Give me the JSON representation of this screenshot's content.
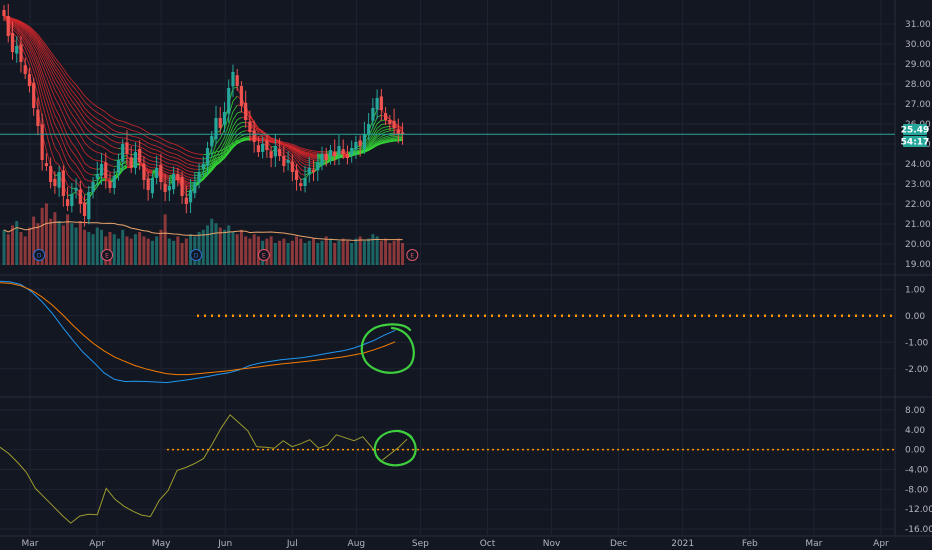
{
  "colors": {
    "background": "#131722",
    "grid": "#1f2431",
    "separator": "#2a2e39",
    "axis_text": "#b2b5be",
    "candle_up": "#26a69a",
    "candle_down": "#ef5350",
    "price_line": "#26a69a",
    "price_badge": "#26a69a",
    "ribbon_red": "#d5282c",
    "ribbon_green": "#35d635",
    "volume_ma": "#e9a36a",
    "macd_line": "#2196f3",
    "signal_line": "#f57c00",
    "zero_line_dotted": "#ff9800",
    "oscillator_line": "#9b9b2e",
    "annotation_circle": "#3ecf3e",
    "event_dividend": "#2f6fd0",
    "event_earnings": "#e0566b"
  },
  "price_badges": {
    "last_price": "25.49",
    "countdown": "54:17"
  },
  "chart_data": [
    {
      "type": "candlestick",
      "panel": "price",
      "price_axis_ticks": [
        "31.00",
        "30.00",
        "29.00",
        "28.00",
        "27.00",
        "26.00",
        "25.00",
        "24.00",
        "23.00",
        "22.00",
        "21.00",
        "20.00",
        "19.00"
      ],
      "ylim": [
        18.8,
        31.8
      ],
      "x_axis_labels": [
        "Mar",
        "Apr",
        "May",
        "Jun",
        "Jul",
        "Aug",
        "Sep",
        "Oct",
        "Nov",
        "Dec",
        "2021",
        "Feb",
        "Mar",
        "Apr"
      ],
      "x_label_positions_index": [
        0,
        22,
        43,
        64,
        86,
        107,
        128,
        150,
        171,
        193,
        214,
        236,
        257,
        279
      ],
      "last_close": 25.49,
      "closes_by_session": [
        31.4,
        30.4,
        29.6,
        29.9,
        29.1,
        28.5,
        27.9,
        26.8,
        25.9,
        24.2,
        23.9,
        23.1,
        22.9,
        23.6,
        22.4,
        21.9,
        22.5,
        22.8,
        22.0,
        21.4,
        22.6,
        23.1,
        23.5,
        24.0,
        23.3,
        22.8,
        23.4,
        24.2,
        25.0,
        24.5,
        23.8,
        24.6,
        24.1,
        23.2,
        22.7,
        23.3,
        23.8,
        23.1,
        22.6,
        22.9,
        23.5,
        23.2,
        22.4,
        22.0,
        22.7,
        23.1,
        23.6,
        24.0,
        24.8,
        25.4,
        26.3,
        25.8,
        26.6,
        27.8,
        28.6,
        27.9,
        26.9,
        26.2,
        25.6,
        25.1,
        24.6,
        25.0,
        24.7,
        24.3,
        24.9,
        24.4,
        23.9,
        24.2,
        23.6,
        23.2,
        22.9,
        23.3,
        23.8,
        23.6,
        24.1,
        24.5,
        24.2,
        24.7,
        24.4,
        24.9,
        24.5,
        24.3,
        24.8,
        25.1,
        24.9,
        25.5,
        26.0,
        26.8,
        27.3,
        26.7,
        26.2,
        26.0,
        25.8,
        25.5,
        25.49
      ],
      "volume_by_session": [
        1.6,
        1.4,
        1.8,
        2.0,
        1.5,
        1.3,
        1.7,
        2.2,
        1.9,
        2.6,
        2.8,
        2.1,
        2.4,
        2.0,
        1.8,
        2.3,
        1.9,
        1.7,
        2.0,
        1.6,
        1.5,
        1.4,
        1.7,
        1.6,
        1.3,
        1.5,
        1.4,
        1.2,
        1.6,
        1.3,
        1.2,
        1.4,
        1.5,
        1.3,
        1.2,
        1.1,
        1.3,
        1.6,
        2.3,
        1.2,
        1.1,
        1.3,
        1.0,
        1.2,
        1.4,
        1.3,
        1.5,
        1.6,
        1.8,
        2.1,
        1.9,
        1.7,
        1.6,
        1.8,
        1.5,
        1.4,
        1.6,
        1.3,
        1.2,
        1.4,
        1.3,
        1.1,
        1.2,
        1.3,
        1.0,
        1.1,
        1.2,
        1.0,
        1.1,
        1.3,
        1.2,
        1.0,
        1.1,
        1.2,
        1.0,
        1.1,
        1.3,
        1.2,
        1.0,
        1.1,
        1.2,
        1.1,
        1.0,
        1.2,
        1.3,
        1.1,
        1.2,
        1.4,
        1.3,
        1.1,
        1.2,
        1.0,
        1.1,
        1.2,
        1.0
      ],
      "event_markers": [
        {
          "label": "D",
          "kind": "dividend",
          "session": 5
        },
        {
          "label": "E",
          "kind": "earnings",
          "session": 21
        },
        {
          "label": "D",
          "kind": "dividend",
          "session": 42
        },
        {
          "label": "E",
          "kind": "earnings",
          "session": 58
        },
        {
          "label": "E",
          "kind": "earnings",
          "session": 93
        }
      ]
    },
    {
      "type": "line",
      "panel": "macd",
      "axis_ticks": [
        "1.00",
        "0.00",
        "-1.00",
        "-2.00"
      ],
      "ylim": [
        -2.8,
        1.35
      ],
      "zero_line": 0.0,
      "series": [
        {
          "key": "macd",
          "values": [
            1.3,
            1.28,
            1.18,
            0.92,
            0.55,
            0.1,
            -0.42,
            -0.92,
            -1.38,
            -1.75,
            -2.15,
            -2.4,
            -2.48,
            -2.47,
            -2.48,
            -2.5,
            -2.52,
            -2.47,
            -2.42,
            -2.36,
            -2.29,
            -2.21,
            -2.15,
            -2.04,
            -1.88,
            -1.78,
            -1.72,
            -1.66,
            -1.62,
            -1.58,
            -1.52,
            -1.45,
            -1.38,
            -1.32,
            -1.22,
            -1.08,
            -0.92,
            -0.72,
            -0.55
          ]
        },
        {
          "key": "signal",
          "values": [
            1.25,
            1.22,
            1.13,
            0.97,
            0.72,
            0.42,
            0.05,
            -0.35,
            -0.72,
            -1.05,
            -1.32,
            -1.55,
            -1.72,
            -1.88,
            -2.0,
            -2.1,
            -2.18,
            -2.22,
            -2.22,
            -2.19,
            -2.15,
            -2.11,
            -2.07,
            -2.02,
            -1.97,
            -1.92,
            -1.87,
            -1.82,
            -1.78,
            -1.74,
            -1.7,
            -1.65,
            -1.6,
            -1.55,
            -1.48,
            -1.4,
            -1.28,
            -1.14,
            -0.98
          ]
        }
      ],
      "annotation": "hand-drawn circle"
    },
    {
      "type": "line",
      "panel": "oscillator",
      "axis_ticks": [
        "8.00",
        "4.00",
        "0.00",
        "-4.00",
        "-8.00",
        "-12.00",
        "-16.00"
      ],
      "ylim": [
        -17.2,
        9.6
      ],
      "zero_line": 0.0,
      "series": [
        {
          "key": "oscillator",
          "values": [
            0.5,
            -0.8,
            -2.6,
            -4.6,
            -7.8,
            -9.6,
            -11.4,
            -13.2,
            -14.8,
            -13.4,
            -13.0,
            -13.1,
            -7.8,
            -10.0,
            -11.4,
            -12.4,
            -13.2,
            -13.5,
            -10.2,
            -8.2,
            -4.2,
            -3.6,
            -2.8,
            -1.8,
            1.2,
            4.4,
            7.0,
            5.4,
            3.8,
            0.6,
            0.5,
            0.3,
            1.8,
            0.6,
            1.2,
            2.0,
            0.3,
            0.9,
            3.0,
            2.4,
            1.8,
            2.6,
            0.5,
            -2.4,
            -1.0,
            0.4,
            2.1
          ]
        }
      ],
      "annotation": "hand-drawn circle"
    }
  ]
}
